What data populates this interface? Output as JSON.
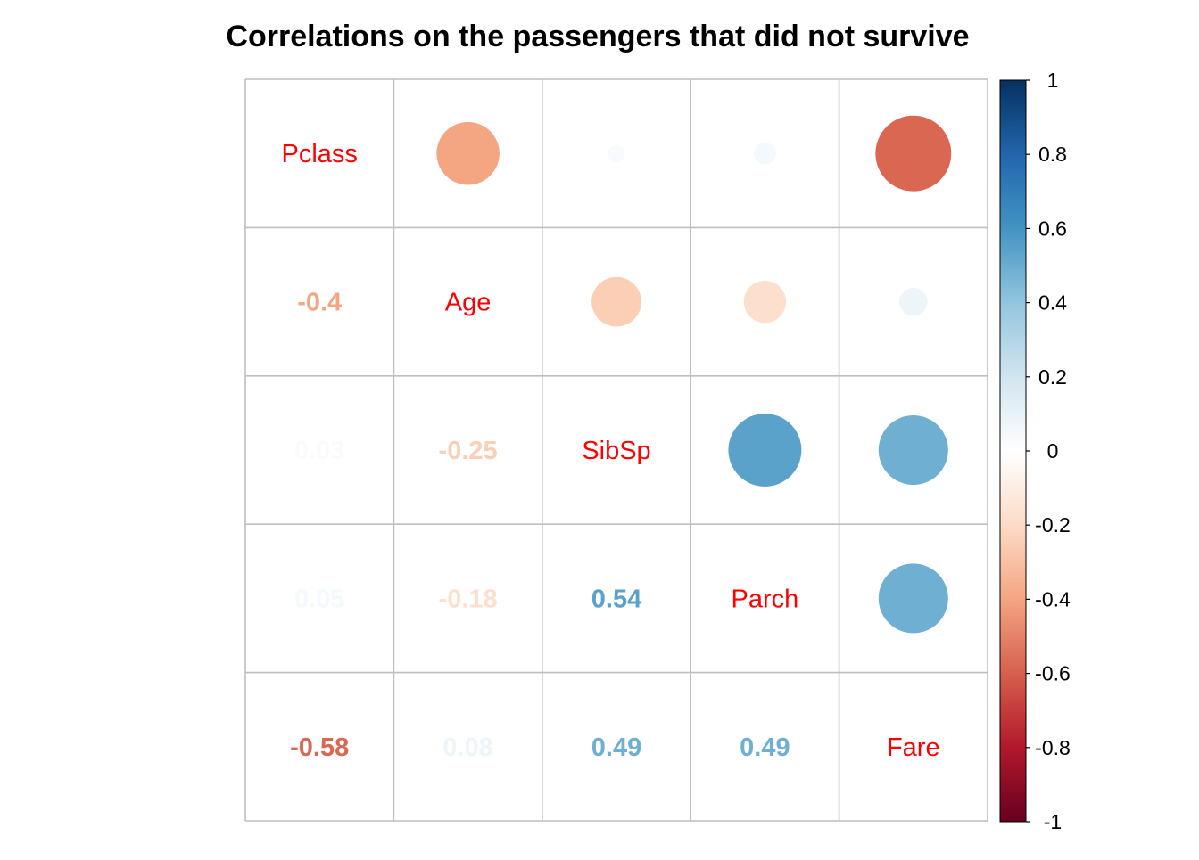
{
  "chart_data": {
    "type": "heatmap",
    "title": "Correlations on the passengers that did not survive",
    "variables": [
      "Pclass",
      "Age",
      "SibSp",
      "Parch",
      "Fare"
    ],
    "matrix": [
      [
        1.0,
        -0.4,
        0.03,
        0.05,
        -0.58
      ],
      [
        -0.4,
        1.0,
        -0.25,
        -0.18,
        0.08
      ],
      [
        0.03,
        -0.25,
        1.0,
        0.54,
        0.49
      ],
      [
        0.05,
        -0.18,
        0.54,
        1.0,
        0.49
      ],
      [
        -0.58,
        0.08,
        0.49,
        0.49,
        1.0
      ]
    ],
    "number_labels": [
      [
        "",
        "",
        "",
        "",
        ""
      ],
      [
        "-0.4",
        "",
        "",
        "",
        ""
      ],
      [
        "0.03",
        "-0.25",
        "",
        "",
        ""
      ],
      [
        "0.05",
        "-0.18",
        "0.54",
        "",
        ""
      ],
      [
        "-0.58",
        "0.08",
        "0.49",
        "0.49",
        ""
      ]
    ],
    "upper": "circle",
    "lower": "number",
    "diagonal": "variable-name",
    "colorbar": {
      "range": [
        -1,
        1
      ],
      "ticks": [
        "1",
        "0.8",
        "0.6",
        "0.4",
        "0.2",
        "0",
        "-0.2",
        "-0.4",
        "-0.6",
        "-0.8",
        "-1"
      ],
      "tick_values": [
        1,
        0.8,
        0.6,
        0.4,
        0.2,
        0,
        -0.2,
        -0.4,
        -0.6,
        -0.8,
        -1
      ],
      "colors": [
        "#67001F",
        "#B2182B",
        "#D6604D",
        "#F4A582",
        "#FDDBC7",
        "#FFFFFF",
        "#D1E5F0",
        "#92C5DE",
        "#4393C3",
        "#2166AC",
        "#053061"
      ]
    },
    "label_color": "#ff0000",
    "grid_color": "#bebebe"
  }
}
